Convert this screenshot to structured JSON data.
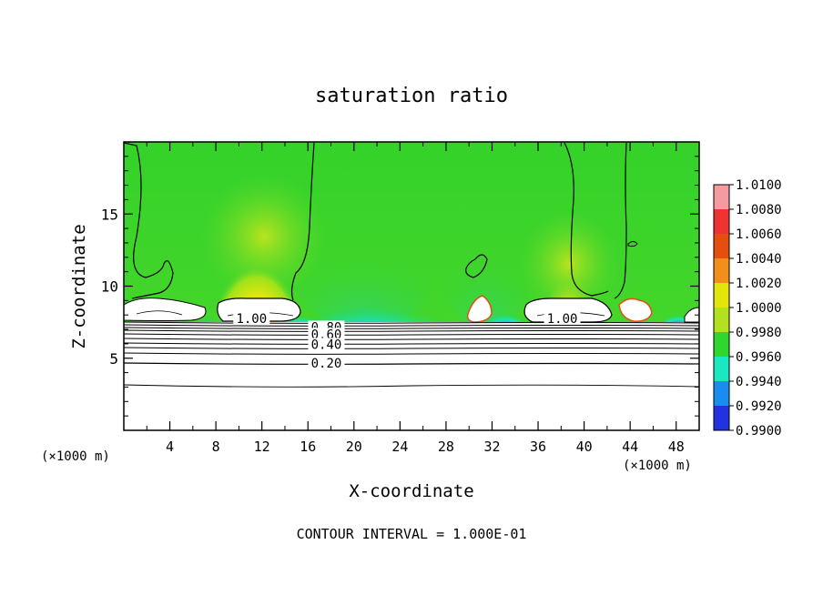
{
  "chart_data": {
    "type": "heatmap",
    "title": "saturation ratio",
    "xlabel": "X-coordinate",
    "ylabel": "Z-coordinate",
    "x_unit_left": "(×1000 m)",
    "x_unit_right": "(×1000 m)",
    "xlim": [
      0,
      50
    ],
    "ylim": [
      0,
      20
    ],
    "x_ticks": [
      4,
      8,
      12,
      16,
      20,
      24,
      28,
      32,
      36,
      40,
      44,
      48
    ],
    "y_ticks": [
      5,
      10,
      15
    ],
    "footer": "CONTOUR INTERVAL = 1.000E-01",
    "colorbar": {
      "levels": [
        "1.0100",
        "1.0080",
        "1.0060",
        "1.0040",
        "1.0020",
        "1.0000",
        "0.9980",
        "0.9960",
        "0.9940",
        "0.9920",
        "0.9900"
      ],
      "colors": [
        "#f49ba0",
        "#ee3333",
        "#e44e0e",
        "#f28e1a",
        "#e2e60c",
        "#b2e21e",
        "#2ed62e",
        "#1ae8c0",
        "#1a8cf0",
        "#2232e0",
        "#3a0a9a"
      ]
    },
    "contour_labels": [
      {
        "text": "1.00",
        "x": 11.1,
        "z": 7.7
      },
      {
        "text": "1.00",
        "x": 38.1,
        "z": 7.7
      },
      {
        "text": "0.80",
        "x": 17.6,
        "z": 7.1
      },
      {
        "text": "0.60",
        "x": 17.6,
        "z": 6.6
      },
      {
        "text": "0.40",
        "x": 17.6,
        "z": 5.9
      },
      {
        "text": "0.20",
        "x": 17.6,
        "z": 4.6
      }
    ]
  }
}
